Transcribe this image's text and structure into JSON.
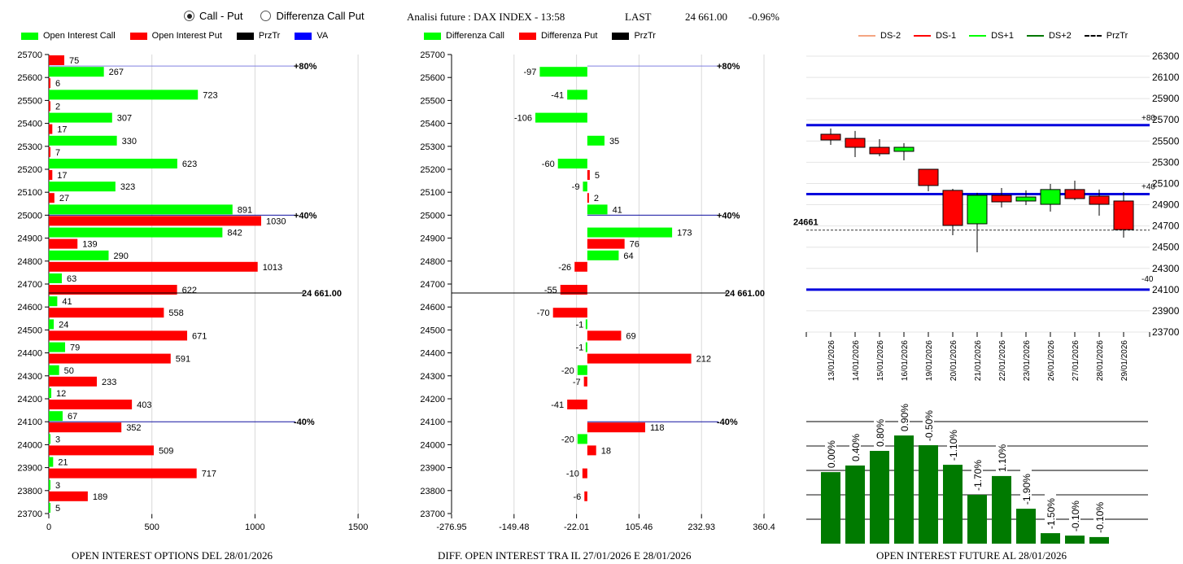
{
  "controls": {
    "radio_options": [
      {
        "label": "Call - Put",
        "selected": true
      },
      {
        "label": "Differenza Call Put",
        "selected": false
      }
    ]
  },
  "header": {
    "title": "Analisi future : DAX INDEX - 13:58",
    "last_label": "LAST",
    "last_value": "24 661.00",
    "change": "-0.96%"
  },
  "colors": {
    "call": "#00ff00",
    "put": "#ff0000",
    "price": "#000000",
    "va": "#0000ff",
    "ds_minus2": "#f4a582",
    "ds_minus1": "#ff0000",
    "ds_plus1": "#00ff00",
    "ds_plus2": "#007700",
    "future_bar": "#007a00"
  },
  "chart_data": [
    {
      "type": "bar",
      "id": "oi-options",
      "orientation": "horizontal",
      "title": "OPEN INTEREST OPTIONS DEL 28/01/2026",
      "legend": [
        "Open Interest Call",
        "Open Interest Put",
        "PrzTr",
        "VA"
      ],
      "legend_placement": "top",
      "categories": [
        25700,
        25600,
        25500,
        25400,
        25300,
        25200,
        25100,
        25000,
        24900,
        24800,
        24700,
        24600,
        24500,
        24400,
        24300,
        24200,
        24100,
        24000,
        23900,
        23800,
        23700
      ],
      "series": [
        {
          "name": "Open Interest Call",
          "values": [
            null,
            267,
            723,
            307,
            330,
            623,
            323,
            891,
            842,
            290,
            63,
            41,
            24,
            79,
            50,
            12,
            67,
            3,
            21,
            3,
            5
          ]
        },
        {
          "name": "Open Interest Put",
          "values": [
            75,
            6,
            2,
            17,
            7,
            17,
            27,
            1030,
            139,
            1013,
            622,
            558,
            671,
            591,
            233,
            403,
            352,
            509,
            717,
            189,
            null
          ]
        }
      ],
      "x_ticks": [
        "0",
        "500",
        "1000",
        "1500"
      ],
      "xlim": [
        0,
        1500
      ],
      "reference_lines": [
        {
          "label": "+80%",
          "strike": 25650
        },
        {
          "label": "+40%",
          "strike": 25000
        },
        {
          "label": "-40%",
          "strike": 24100
        }
      ],
      "price_line": {
        "label": "24 661.00",
        "value": 24661
      }
    },
    {
      "type": "bar",
      "id": "oi-diff",
      "orientation": "horizontal",
      "title": "DIFF. OPEN INTEREST TRA IL 27/01/2026 E 28/01/2026",
      "legend": [
        "Differenza Call",
        "Differenza Put",
        "PrzTr"
      ],
      "legend_placement": "top",
      "categories": [
        25700,
        25600,
        25500,
        25400,
        25300,
        25200,
        25100,
        25000,
        24900,
        24800,
        24700,
        24600,
        24500,
        24400,
        24300,
        24200,
        24100,
        24000,
        23900,
        23800,
        23700
      ],
      "series": [
        {
          "name": "Differenza Call",
          "values": [
            null,
            -97,
            -41,
            -106,
            35,
            -60,
            -9,
            41,
            173,
            64,
            null,
            null,
            -1,
            -1,
            -20,
            null,
            null,
            -20,
            null,
            null,
            null
          ]
        },
        {
          "name": "Differenza Put",
          "values": [
            null,
            null,
            null,
            null,
            null,
            5,
            2,
            null,
            76,
            -26,
            -55,
            -70,
            69,
            212,
            -7,
            -41,
            118,
            18,
            -10,
            -6,
            null
          ]
        }
      ],
      "x_ticks": [
        "-276.95",
        "-149.48",
        "-22.01",
        "105.46",
        "232.93",
        "360.4"
      ],
      "xlim": [
        -276.95,
        360.4
      ],
      "reference_lines": [
        {
          "label": "+80%",
          "strike": 25650
        },
        {
          "label": "+40%",
          "strike": 25000
        },
        {
          "label": "-40%",
          "strike": 24100
        }
      ],
      "price_line": {
        "label": "24 661.00",
        "value": 24661
      }
    },
    {
      "type": "candlestick",
      "id": "future-candles",
      "legend": [
        "DS-2",
        "DS-1",
        "DS+1",
        "DS+2",
        "PrzTr"
      ],
      "legend_placement": "top",
      "categories": [
        "13/01/2026",
        "14/01/2026",
        "15/01/2026",
        "16/01/2026",
        "19/01/2026",
        "20/01/2026",
        "21/01/2026",
        "22/01/2026",
        "23/01/2026",
        "26/01/2026",
        "27/01/2026",
        "28/01/2026",
        "29/01/2026"
      ],
      "ohlc": [
        {
          "open": 25564,
          "high": 25618,
          "low": 25464,
          "close": 25510
        },
        {
          "open": 25525,
          "high": 25595,
          "low": 25349,
          "close": 25441
        },
        {
          "open": 25441,
          "high": 25518,
          "low": 25357,
          "close": 25380
        },
        {
          "open": 25403,
          "high": 25480,
          "low": 25318,
          "close": 25441
        },
        {
          "open": 25234,
          "high": 25234,
          "low": 25027,
          "close": 25081
        },
        {
          "open": 25035,
          "high": 25050,
          "low": 24613,
          "close": 24705
        },
        {
          "open": 24720,
          "high": 25012,
          "low": 24452,
          "close": 24989
        },
        {
          "open": 24989,
          "high": 25058,
          "low": 24874,
          "close": 24927
        },
        {
          "open": 24935,
          "high": 25035,
          "low": 24896,
          "close": 24973
        },
        {
          "open": 24904,
          "high": 25096,
          "low": 24835,
          "close": 25043
        },
        {
          "open": 25043,
          "high": 25127,
          "low": 24943,
          "close": 24958
        },
        {
          "open": 24981,
          "high": 25043,
          "low": 24797,
          "close": 24904
        },
        {
          "open": 24935,
          "high": 25019,
          "low": 24590,
          "close": 24665
        }
      ],
      "y_ticks": [
        26300,
        26100,
        25900,
        25700,
        25500,
        25300,
        25100,
        24900,
        24700,
        24500,
        24300,
        24100,
        23900,
        23700
      ],
      "ylim": [
        23700,
        26300
      ],
      "levels": [
        {
          "label": "+80",
          "value": 25650
        },
        {
          "label": "+40",
          "value": 25000
        },
        {
          "label": "-40",
          "value": 24100
        }
      ],
      "price_line": {
        "label": "24661",
        "value": 24661
      }
    },
    {
      "type": "bar",
      "id": "oi-future",
      "title": "OPEN INTEREST FUTURE AL 28/01/2026",
      "categories": [
        "13/01/2026",
        "14/01/2026",
        "15/01/2026",
        "16/01/2026",
        "19/01/2026",
        "20/01/2026",
        "21/01/2026",
        "22/01/2026",
        "23/01/2026",
        "26/01/2026",
        "27/01/2026",
        "28/01/2026"
      ],
      "values": [
        2.93,
        3.2,
        3.8,
        4.43,
        4.03,
        3.23,
        2.0,
        2.77,
        1.43,
        0.43,
        0.33,
        0.27
      ],
      "data_labels": [
        "0.00%",
        "0.40%",
        "0.80%",
        "0.90%",
        "-0.50%",
        "-1.10%",
        "-1.70%",
        "1.10%",
        "-1.90%",
        "-1.50%",
        "-0.10%",
        "-0.10%"
      ],
      "ylim": [
        0,
        5
      ],
      "grid": true
    }
  ]
}
